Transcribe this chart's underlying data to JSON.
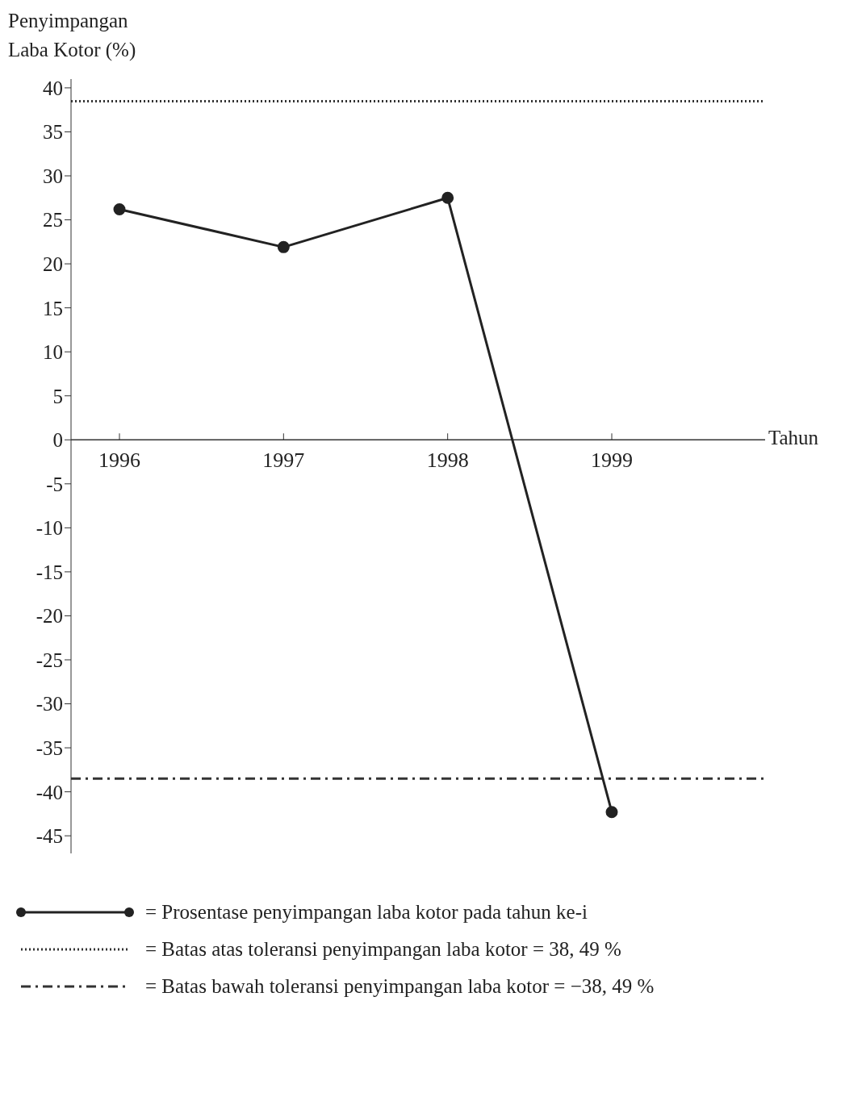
{
  "chart_data": {
    "type": "line",
    "ylabel": "Penyimpangan Laba Kotor (%)",
    "xlabel": "Tahun",
    "categories": [
      "1996",
      "1997",
      "1998",
      "1999"
    ],
    "series": [
      {
        "name": "= Prosentase penyimpangan laba kotor pada tahun ke-i",
        "color": "#222222",
        "values": [
          26.2,
          21.9,
          27.5,
          -42.3
        ]
      }
    ],
    "ylim": [
      -47,
      41
    ],
    "yticks": [
      -45,
      -40,
      -35,
      -30,
      -25,
      -20,
      -15,
      -10,
      -5,
      0,
      5,
      10,
      15,
      20,
      25,
      30,
      35,
      40
    ],
    "ref_lines": [
      {
        "axis": "y",
        "value": 38.49,
        "label": "= Batas atas toleransi penyimpangan laba kotor  = 38, 49 %",
        "color": "#333333",
        "line_style": "dotted"
      },
      {
        "axis": "y",
        "value": -38.49,
        "label": "= Batas bawah toleransi penyimpangan laba kotor  = −38, 49 %",
        "color": "#333333",
        "line_style": "dashdot"
      }
    ],
    "marker": "circle",
    "line_style": "solid",
    "legend": "bottom"
  }
}
